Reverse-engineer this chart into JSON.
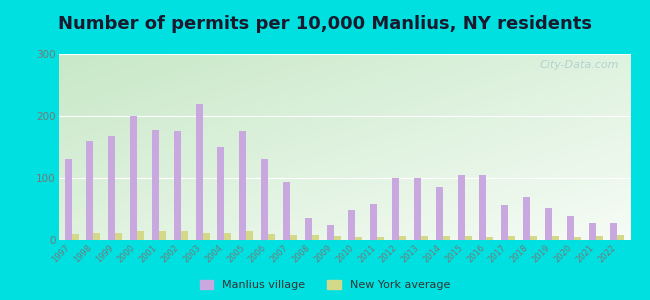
{
  "title": "Number of permits per 10,000 Manlius, NY residents",
  "years": [
    1997,
    1998,
    1999,
    2000,
    2001,
    2002,
    2003,
    2004,
    2005,
    2006,
    2007,
    2008,
    2009,
    2010,
    2011,
    2012,
    2013,
    2014,
    2015,
    2016,
    2017,
    2018,
    2019,
    2020,
    2021,
    2022
  ],
  "manlius": [
    130,
    160,
    168,
    200,
    178,
    176,
    220,
    150,
    176,
    130,
    93,
    36,
    24,
    48,
    58,
    100,
    100,
    85,
    105,
    105,
    57,
    70,
    52,
    38,
    27,
    27
  ],
  "ny_avg": [
    10,
    12,
    12,
    14,
    14,
    14,
    12,
    12,
    14,
    10,
    8,
    8,
    6,
    5,
    5,
    6,
    6,
    6,
    6,
    5,
    6,
    6,
    6,
    5,
    6,
    8
  ],
  "manlius_color": "#c9a8e0",
  "ny_avg_color": "#d4d98a",
  "bg_outer": "#00e0e0",
  "ylim": [
    0,
    300
  ],
  "yticks": [
    0,
    100,
    200,
    300
  ],
  "title_fontsize": 13,
  "watermark": "City-Data.com",
  "bg_grad_top": "#c8e8c8",
  "bg_grad_bottom": "#f0fbf0",
  "bg_grad_right": "#f5fbf5"
}
